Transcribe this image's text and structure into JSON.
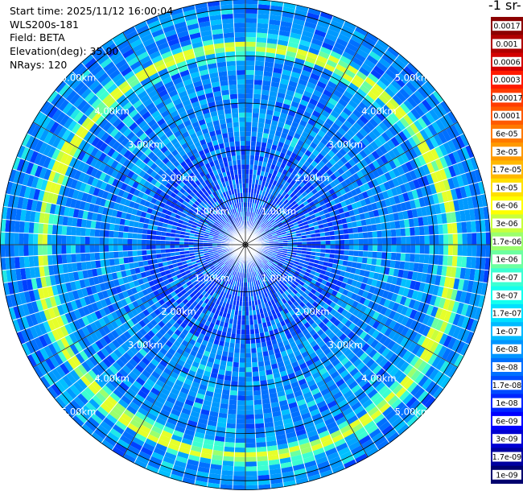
{
  "header": {
    "start_time": "Start time: 2025/11/12 16:00:04",
    "instrument": "WLS200s-181",
    "field": "Field: BETA",
    "elevation": "Elevation(deg): 35.00",
    "nrays": "NRays: 120"
  },
  "colorbar": {
    "unit_label": "-1 sr-",
    "ticks": [
      "0.0017",
      "0.001",
      "0.0006",
      "0.0003",
      "0.00017",
      "0.0001",
      "6e-05",
      "3e-05",
      "1.7e-05",
      "1e-05",
      "6e-06",
      "3e-06",
      "1.7e-06",
      "1e-06",
      "6e-07",
      "3e-07",
      "1.7e-07",
      "1e-07",
      "6e-08",
      "3e-08",
      "1.7e-08",
      "1e-08",
      "6e-09",
      "3e-09",
      "1.7e-09",
      "1e-09"
    ],
    "colors": [
      "#8b0000",
      "#b00000",
      "#d40000",
      "#ff1a00",
      "#ff3c00",
      "#ff5a00",
      "#ff7a00",
      "#ff9900",
      "#ffb800",
      "#ffe000",
      "#ffff00",
      "#c8ff3c",
      "#9bff6e",
      "#6cffa0",
      "#3cffd2",
      "#14ffee",
      "#00e0ff",
      "#00baff",
      "#0095ff",
      "#0070ff",
      "#004bff",
      "#0026ff",
      "#0000ff",
      "#0000d2",
      "#0000a0",
      "#00006e"
    ]
  },
  "chart_data": {
    "type": "heatmap",
    "projection": "polar PPI",
    "n_rays": 120,
    "range_rings_km": [
      1,
      2,
      3,
      4,
      5
    ],
    "ring_labels": [
      "1.00km",
      "2.00km",
      "3.00km",
      "4.00km",
      "5.00km"
    ],
    "max_range_km": 5.2,
    "azimuth_lines_deg": [
      0,
      30,
      60,
      90,
      120,
      150,
      180,
      210,
      240,
      270,
      300,
      330
    ],
    "aerosol_layer_range_km": [
      4.1,
      4.6
    ],
    "field": "BETA"
  }
}
